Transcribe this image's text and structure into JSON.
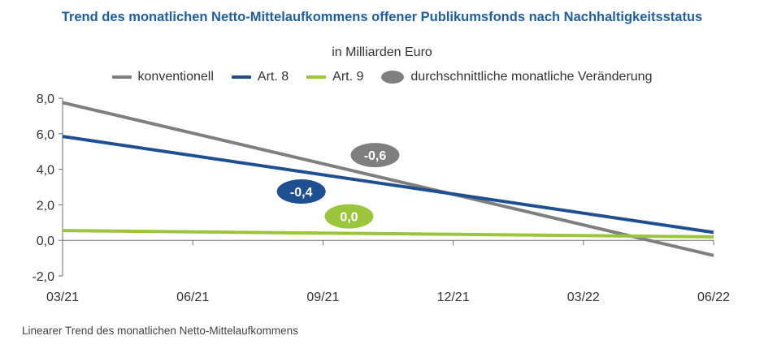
{
  "title": "Trend des monatlichen Netto-Mittelaufkommens offener Publikumsfonds nach Nachhaltigkeitsstatus",
  "subtitle": "in Milliarden Euro",
  "footnote": "Linearer Trend des monatlichen Netto-Mittelaufkommens",
  "legend": [
    {
      "label": "konventionell",
      "color": "#7f7f7f",
      "kind": "line"
    },
    {
      "label": "Art. 8",
      "color": "#1d4f91",
      "kind": "line"
    },
    {
      "label": "Art. 9",
      "color": "#9bc53d",
      "kind": "line"
    },
    {
      "label": "durchschnittliche monatliche Veränderung",
      "color": "#7f7f7f",
      "kind": "oval"
    }
  ],
  "chart_data": {
    "type": "line",
    "title": "Trend des monatlichen Netto-Mittelaufkommens offener Publikumsfonds nach Nachhaltigkeitsstatus",
    "ylabel": "in Milliarden Euro",
    "xlabel": "",
    "x_ticks": [
      "03/21",
      "06/21",
      "09/21",
      "12/21",
      "03/22",
      "06/22"
    ],
    "x_range": [
      0,
      15
    ],
    "ylim": [
      -2,
      8
    ],
    "y_ticks": [
      -2,
      0,
      2,
      4,
      6,
      8
    ],
    "y_tick_labels": [
      "-2,0",
      "0,0",
      "2,0",
      "4,0",
      "6,0",
      "8,0"
    ],
    "grid": false,
    "series": [
      {
        "name": "konventionell",
        "color": "#7f7f7f",
        "points": [
          [
            0,
            7.75
          ],
          [
            15,
            -0.85
          ]
        ]
      },
      {
        "name": "Art. 8",
        "color": "#1d4f91",
        "points": [
          [
            0,
            5.85
          ],
          [
            15,
            0.45
          ]
        ]
      },
      {
        "name": "Art. 9",
        "color": "#9bc53d",
        "points": [
          [
            0,
            0.55
          ],
          [
            15,
            0.2
          ]
        ]
      }
    ],
    "annotations": [
      {
        "text": "-0,6",
        "series": "konventionell",
        "color": "#7f7f7f",
        "x": 7.2,
        "y": 4.8
      },
      {
        "text": "-0,4",
        "series": "Art. 8",
        "color": "#1d4f91",
        "x": 5.5,
        "y": 2.75
      },
      {
        "text": "0,0",
        "series": "Art. 9",
        "color": "#9bc53d",
        "x": 6.6,
        "y": 1.35
      }
    ]
  }
}
